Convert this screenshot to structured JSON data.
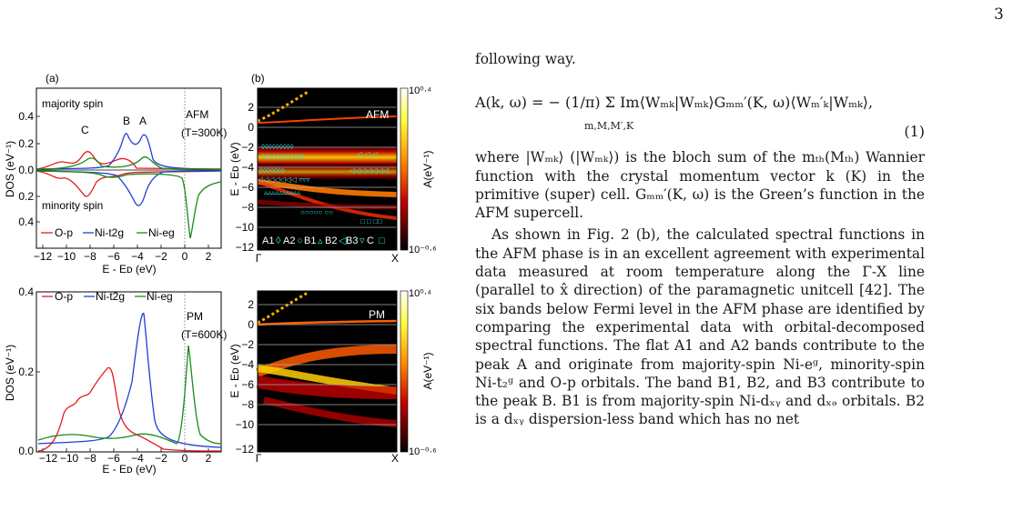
{
  "page_number": "3",
  "figure": {
    "panel_a_label": "(a)",
    "panel_b_label": "(b)",
    "top_left": {
      "label_majority": "majority spin",
      "label_minority": "minority spin",
      "phase": "AFM",
      "temp": "(T=300K)",
      "peak_labels": [
        "C",
        "B",
        "A"
      ],
      "ylabel": "DOS (eV⁻¹)",
      "xlabel": "E - Eᴅ (eV)",
      "yticks": [
        "0.4",
        "0.2",
        "0.0",
        "0.2",
        "0.4"
      ],
      "xticks": [
        "−12",
        "−10",
        "−8",
        "−6",
        "−4",
        "−2",
        "0",
        "2"
      ],
      "legend": [
        "O-p",
        "Ni-t2g",
        "Ni-eg"
      ],
      "colors": {
        "Op": "#e41a1c",
        "t2g": "#1f3fd6",
        "eg": "#1a8a1a"
      }
    },
    "bottom_left": {
      "phase": "PM",
      "temp": "(T=600K)",
      "yticks": [
        "0.4",
        "0.2",
        "0.0"
      ],
      "xticks": [
        "−12",
        "−10",
        "−8",
        "−6",
        "−4",
        "−2",
        "0",
        "2"
      ]
    },
    "right_panels": {
      "top_tag": "AFM",
      "bottom_tag": "PM",
      "ylabel": "E - Eᴅ (eV)",
      "yticks": [
        "2",
        "0",
        "−2",
        "−4",
        "−6",
        "−8",
        "−10",
        "−12"
      ],
      "xticks": [
        "Γ",
        "X"
      ],
      "colorbar_top": "10⁰·⁴",
      "colorbar_bottom": "10⁻⁰·⁶",
      "colorbar_label": "A(eV⁻¹)",
      "legend": [
        "A1",
        "A2",
        "B1",
        "B2",
        "B3",
        "C"
      ]
    }
  },
  "text": {
    "intro": "following way.",
    "equation": "A(k, ω) = − (1/π) Σ Im⟨Wₘₖ|Wₘₖ⟩Gₘₘ′(K, ω)⟨Wₘ′ₖ|Wₘₖ⟩,",
    "eq_sum_index": "m,M,M′,K",
    "eq_number": "(1)",
    "para1": "where |Wₘₖ⟩ (|Wₘₖ⟩) is the bloch sum of the mₜₕ(Mₜₕ) Wannier function with the crystal momentum vector k (K) in the primitive (super) cell. Gₘₘ′(K, ω) is the Green’s function in the AFM supercell.",
    "para2": "As shown in Fig. 2 (b), the calculated spectral functions in the AFM phase is in an excellent agreement with experimental data measured at room temperature along the Γ-X line (parallel to x̂ direction) of the paramagnetic unitcell [42]. The six bands below Fermi level in the AFM phase are identified by comparing the experimental data with orbital-decomposed spectral functions. The flat A1 and A2 bands contribute to the peak A and originate from majority-spin Ni-eᵍ, minority-spin Ni-t₂ᵍ and O-p orbitals. The band B1, B2, and B3 contribute to the peak B. B1 is from majority-spin Ni-dₓᵧ and dₓₔ orbitals. B2 is a dₓᵧ dispersion-less band which has no net"
  }
}
